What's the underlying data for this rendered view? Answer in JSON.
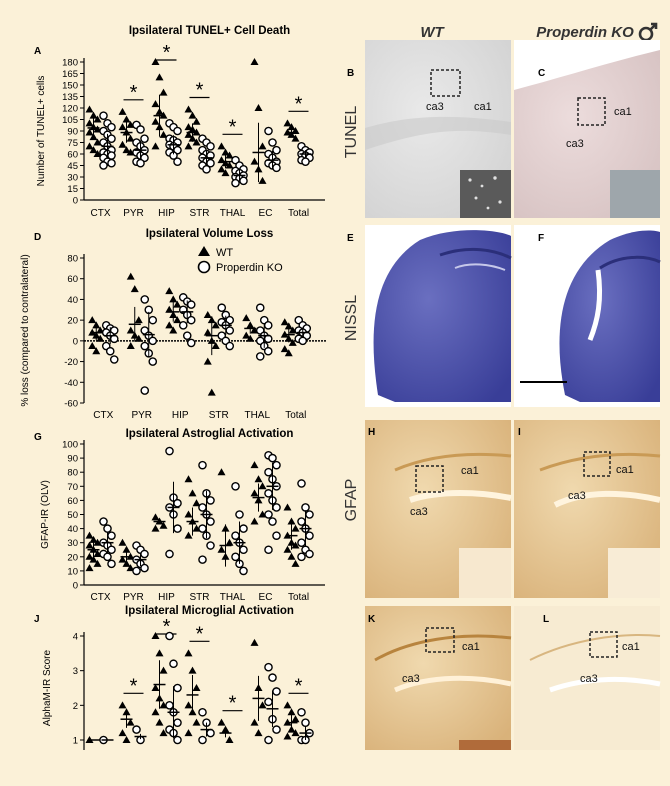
{
  "columns": {
    "wt": "WT",
    "ko": "Properdin KO"
  },
  "rows": {
    "tunel": "TUNEL",
    "nissl": "NISSL",
    "gfap": "GFAP"
  },
  "regions": {
    "ca1": "ca1",
    "ca3": "ca3"
  },
  "panel_letters": {
    "B": "B",
    "C": "C",
    "E": "E",
    "F": "F",
    "H": "H",
    "I": "I",
    "K": "K",
    "L": "L"
  },
  "colors": {
    "background": "#fbf1d8",
    "tunel_wt": "#e6e6e6",
    "tunel_ko": "#e5d6d6",
    "nissl": "#4a4fa6",
    "gfap": "#e2c38e",
    "stain_bg": "#ffffff"
  },
  "icons": {
    "corner": "male-symbol-icon"
  },
  "chart_data": [
    {
      "panel": "A",
      "type": "scatter",
      "title": "Ipsilateral TUNEL+ Cell Death",
      "ylabel": "Number of TUNEL+ cells",
      "ylim": [
        0,
        180
      ],
      "yticks": [
        0,
        15,
        30,
        45,
        60,
        75,
        90,
        105,
        120,
        135,
        150,
        165,
        180
      ],
      "categories": [
        "CTX",
        "PYR",
        "HIP",
        "STR",
        "THAL",
        "EC",
        "Total"
      ],
      "significance": [
        "",
        "*",
        "*",
        "*",
        "*",
        "",
        "*"
      ],
      "series": [
        {
          "name": "WT",
          "marker": "triangle",
          "values": [
            [
              118,
              110,
              105,
              100,
              95,
              92,
              88,
              82,
              75,
              70,
              65,
              60
            ],
            [
              115,
              105,
              98,
              95,
              88,
              80,
              72,
              65,
              62
            ],
            [
              180,
              160,
              140,
              125,
              115,
              110,
              102,
              95,
              85,
              70
            ],
            [
              118,
              110,
              102,
              95,
              92,
              88,
              85,
              80,
              75,
              70
            ],
            [
              70,
              62,
              58,
              52,
              48,
              45,
              40,
              35
            ],
            [
              180,
              120,
              70,
              50,
              40,
              25
            ],
            [
              100,
              95,
              90,
              88,
              85,
              80
            ]
          ],
          "means": [
            94,
            88,
            110,
            88,
            50,
            62,
            88
          ]
        },
        {
          "name": "Properdin KO",
          "marker": "circle",
          "values": [
            [
              110,
              100,
              95,
              90,
              85,
              80,
              75,
              70,
              65,
              62,
              60,
              58,
              55,
              50,
              48,
              45
            ],
            [
              98,
              92,
              80,
              75,
              70,
              65,
              62,
              58,
              55,
              50,
              48
            ],
            [
              100,
              95,
              90,
              80,
              78,
              75,
              72,
              70,
              65,
              62,
              58,
              50
            ],
            [
              80,
              75,
              70,
              65,
              60,
              58,
              55,
              50,
              48,
              45,
              40
            ],
            [
              52,
              45,
              40,
              38,
              35,
              32,
              30,
              28,
              25,
              22
            ],
            [
              90,
              75,
              65,
              60,
              55,
              50,
              48,
              45,
              42
            ],
            [
              70,
              65,
              62,
              60,
              58,
              55,
              52,
              50
            ]
          ],
          "means": [
            70,
            65,
            72,
            55,
            32,
            52,
            60
          ]
        }
      ]
    },
    {
      "panel": "D",
      "type": "scatter",
      "title": "Ipsilateral Volume Loss",
      "ylabel": "% loss (compared to contralateral)",
      "ylim": [
        -60,
        80
      ],
      "yticks": [
        -60,
        -40,
        -20,
        0,
        20,
        40,
        60,
        80
      ],
      "categories": [
        "CTX",
        "PYR",
        "HIP",
        "STR",
        "THAL",
        "Total"
      ],
      "legend": [
        "WT",
        "Properdin KO"
      ],
      "series": [
        {
          "name": "WT",
          "marker": "triangle",
          "values": [
            [
              20,
              15,
              10,
              8,
              5,
              2,
              -5,
              -10
            ],
            [
              62,
              50,
              20,
              10,
              5,
              2,
              -5
            ],
            [
              48,
              40,
              35,
              30,
              25,
              20,
              15,
              10
            ],
            [
              25,
              20,
              15,
              8,
              0,
              -5,
              -20,
              -50
            ],
            [
              22,
              15,
              10,
              5,
              2
            ],
            [
              18,
              14,
              10,
              6,
              2,
              -2,
              -8,
              -12
            ]
          ],
          "means": [
            8,
            16,
            28,
            5,
            12,
            6
          ]
        },
        {
          "name": "Properdin KO",
          "marker": "circle",
          "values": [
            [
              15,
              12,
              10,
              8,
              5,
              2,
              -5,
              -10,
              -18
            ],
            [
              40,
              30,
              20,
              10,
              5,
              0,
              -5,
              -12,
              -20,
              -48
            ],
            [
              42,
              38,
              35,
              30,
              25,
              20,
              15,
              5,
              -2
            ],
            [
              32,
              25,
              20,
              18,
              15,
              10,
              5,
              0,
              -5
            ],
            [
              32,
              20,
              15,
              10,
              5,
              2,
              0,
              -5,
              -10,
              -15
            ],
            [
              20,
              15,
              12,
              10,
              8,
              5,
              2,
              0
            ]
          ],
          "means": [
            5,
            6,
            28,
            15,
            5,
            8
          ]
        }
      ]
    },
    {
      "panel": "G",
      "type": "scatter",
      "title": "Ipsilateral Astroglial Activation",
      "ylabel": "GFAP-IR (OLV)",
      "ylim": [
        0,
        100
      ],
      "yticks": [
        0,
        10,
        20,
        30,
        40,
        50,
        60,
        70,
        80,
        90,
        100
      ],
      "categories": [
        "CTX",
        "PYR",
        "HIP",
        "STR",
        "THAL",
        "EC",
        "Total"
      ],
      "series": [
        {
          "name": "WT",
          "marker": "triangle",
          "values": [
            [
              35,
              32,
              30,
              28,
              25,
              22,
              20,
              18,
              15,
              12
            ],
            [
              30,
              25,
              20,
              18,
              15,
              12
            ],
            [
              48,
              45,
              42,
              40
            ],
            [
              75,
              65,
              58,
              50,
              45,
              40,
              35
            ],
            [
              80,
              40,
              30,
              25,
              20
            ],
            [
              85,
              75,
              70,
              65,
              60,
              50,
              45
            ],
            [
              55,
              45,
              40,
              35,
              30,
              28,
              25,
              20,
              15
            ]
          ],
          "means": [
            25,
            20,
            45,
            45,
            28,
            62,
            35
          ]
        },
        {
          "name": "Properdin KO",
          "marker": "circle",
          "values": [
            [
              45,
              40,
              35,
              30,
              28,
              25,
              22,
              20,
              15
            ],
            [
              28,
              25,
              22,
              18,
              15,
              12,
              10
            ],
            [
              95,
              62,
              58,
              55,
              50,
              40,
              22
            ],
            [
              85,
              65,
              60,
              55,
              50,
              45,
              40,
              35,
              28,
              18
            ],
            [
              70,
              50,
              40,
              35,
              30,
              25,
              20,
              15,
              10
            ],
            [
              92,
              90,
              85,
              80,
              75,
              70,
              65,
              60,
              55,
              50,
              45,
              35,
              25
            ],
            [
              72,
              55,
              50,
              45,
              40,
              35,
              30,
              25,
              22,
              20
            ]
          ],
          "means": [
            30,
            18,
            55,
            50,
            30,
            70,
            40
          ]
        }
      ]
    },
    {
      "panel": "J",
      "type": "scatter",
      "title": "Ipsilateral Microglial Activation",
      "ylabel": "AlphaM-IR Score",
      "ylim": [
        1,
        4
      ],
      "yticks": [
        1,
        2,
        3,
        4
      ],
      "categories": [
        "CTX",
        "PYR",
        "HIP",
        "STR",
        "THAL",
        "EC",
        "Total"
      ],
      "significance": [
        "",
        "*",
        "*",
        "*",
        "*",
        "",
        "*"
      ],
      "series": [
        {
          "name": "WT",
          "marker": "triangle",
          "values": [
            [
              1
            ],
            [
              2,
              1.8,
              1.5,
              1.2,
              1
            ],
            [
              4,
              3.5,
              3,
              2.5,
              2.2,
              2,
              1.8,
              1.5,
              1.2
            ],
            [
              3.5,
              3,
              2.5,
              2,
              1.8,
              1.5,
              1.2
            ],
            [
              1.5,
              1.3,
              1
            ],
            [
              3.8,
              2.5,
              2,
              1.5,
              1.2
            ],
            [
              2,
              1.8,
              1.6,
              1.5,
              1.3,
              1.2,
              1.1
            ]
          ],
          "means": [
            1,
            1.6,
            2.6,
            2.3,
            1.2,
            2.2,
            1.5
          ]
        },
        {
          "name": "Properdin KO",
          "marker": "circle",
          "values": [
            [
              1
            ],
            [
              1.3,
              1
            ],
            [
              4,
              3.2,
              2.5,
              2,
              1.8,
              1.5,
              1.3,
              1.2,
              1
            ],
            [
              1.8,
              1.5,
              1.2,
              1
            ],
            [],
            [
              3.1,
              2.8,
              2.4,
              2.1,
              1.6,
              1.3,
              1
            ],
            [
              1.8,
              1.5,
              1.2,
              1,
              1
            ]
          ],
          "means": [
            1,
            1.1,
            1.8,
            1.3,
            0,
            1.9,
            1.2
          ]
        }
      ]
    }
  ]
}
